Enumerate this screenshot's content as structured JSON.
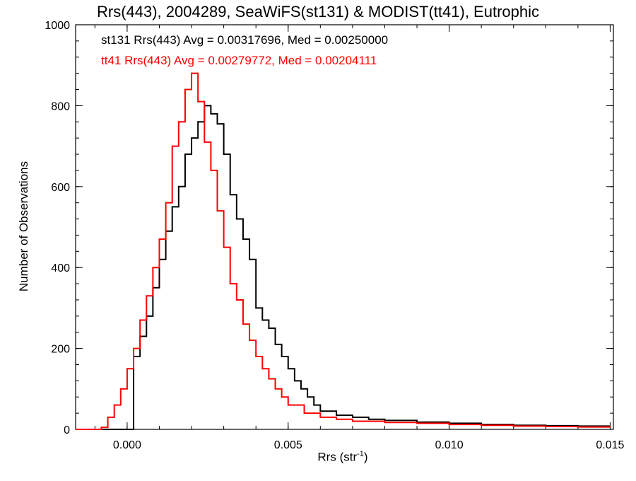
{
  "chart_data": {
    "type": "line",
    "title": "Rrs(443), 2004289, SeaWiFS(st131) & MODIST(tt41), Eutrophic",
    "xlabel_main": "Rrs (str",
    "xlabel_sup": "-1",
    "xlabel_end": ")",
    "ylabel": "Number of Observations",
    "xlim": [
      -0.0016,
      0.0151
    ],
    "ylim": [
      0,
      1000
    ],
    "xticks": [
      0.0,
      0.005,
      0.01,
      0.015
    ],
    "xtick_labels": [
      "0.000",
      "0.005",
      "0.010",
      "0.015"
    ],
    "yticks": [
      0,
      200,
      400,
      600,
      800,
      1000
    ],
    "ytick_labels": [
      "0",
      "200",
      "400",
      "600",
      "800",
      "1000"
    ],
    "grid": false,
    "legend_placement": "top-left",
    "series": [
      {
        "name": "st131",
        "color": "#000000",
        "label": "st131 Rrs(443) Avg = 0.00317696, Med = 0.00250000",
        "points": [
          [
            -0.0016,
            0
          ],
          [
            0.0,
            0
          ],
          [
            0.0002,
            180
          ],
          [
            0.0004,
            230
          ],
          [
            0.0006,
            280
          ],
          [
            0.0008,
            350
          ],
          [
            0.001,
            420
          ],
          [
            0.0012,
            490
          ],
          [
            0.0014,
            550
          ],
          [
            0.0016,
            600
          ],
          [
            0.0018,
            680
          ],
          [
            0.002,
            720
          ],
          [
            0.0022,
            760
          ],
          [
            0.0024,
            800
          ],
          [
            0.0026,
            780
          ],
          [
            0.0028,
            755
          ],
          [
            0.003,
            680
          ],
          [
            0.0032,
            580
          ],
          [
            0.0034,
            520
          ],
          [
            0.0036,
            470
          ],
          [
            0.0038,
            420
          ],
          [
            0.004,
            300
          ],
          [
            0.0042,
            270
          ],
          [
            0.0044,
            250
          ],
          [
            0.0046,
            210
          ],
          [
            0.0048,
            180
          ],
          [
            0.005,
            150
          ],
          [
            0.0052,
            120
          ],
          [
            0.0054,
            100
          ],
          [
            0.0056,
            80
          ],
          [
            0.0058,
            60
          ],
          [
            0.006,
            45
          ],
          [
            0.0065,
            35
          ],
          [
            0.007,
            30
          ],
          [
            0.0075,
            25
          ],
          [
            0.008,
            22
          ],
          [
            0.009,
            18
          ],
          [
            0.01,
            15
          ],
          [
            0.011,
            12
          ],
          [
            0.012,
            10
          ],
          [
            0.013,
            9
          ],
          [
            0.014,
            8
          ],
          [
            0.015,
            8
          ]
        ]
      },
      {
        "name": "tt41",
        "color": "#ff0000",
        "label": "tt41 Rrs(443) Avg = 0.00279772, Med = 0.00204111",
        "points": [
          [
            -0.0016,
            0
          ],
          [
            -0.0008,
            5
          ],
          [
            -0.0006,
            30
          ],
          [
            -0.0004,
            60
          ],
          [
            -0.0002,
            100
          ],
          [
            0.0,
            150
          ],
          [
            0.0002,
            200
          ],
          [
            0.0004,
            270
          ],
          [
            0.0006,
            330
          ],
          [
            0.0008,
            400
          ],
          [
            0.001,
            470
          ],
          [
            0.0012,
            560
          ],
          [
            0.0014,
            700
          ],
          [
            0.0016,
            760
          ],
          [
            0.0018,
            840
          ],
          [
            0.002,
            880
          ],
          [
            0.0022,
            810
          ],
          [
            0.0024,
            710
          ],
          [
            0.0026,
            640
          ],
          [
            0.0028,
            540
          ],
          [
            0.003,
            450
          ],
          [
            0.0032,
            360
          ],
          [
            0.0034,
            320
          ],
          [
            0.0036,
            260
          ],
          [
            0.0038,
            220
          ],
          [
            0.004,
            180
          ],
          [
            0.0042,
            150
          ],
          [
            0.0044,
            125
          ],
          [
            0.0046,
            100
          ],
          [
            0.0048,
            80
          ],
          [
            0.005,
            60
          ],
          [
            0.0055,
            40
          ],
          [
            0.006,
            30
          ],
          [
            0.0065,
            25
          ],
          [
            0.007,
            20
          ],
          [
            0.008,
            17
          ],
          [
            0.009,
            15
          ],
          [
            0.01,
            12
          ],
          [
            0.011,
            10
          ],
          [
            0.012,
            8
          ],
          [
            0.013,
            7
          ],
          [
            0.014,
            6
          ],
          [
            0.015,
            5
          ]
        ]
      }
    ]
  }
}
